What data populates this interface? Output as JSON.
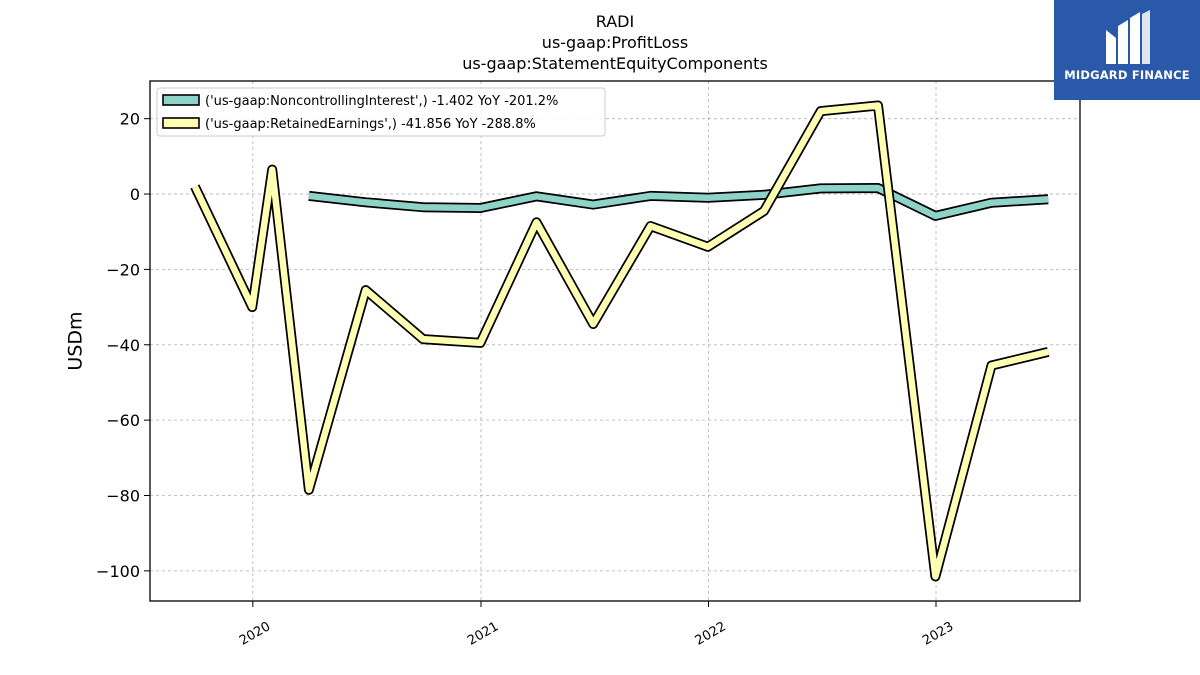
{
  "brand": {
    "name": "MIDGARD FINANCE",
    "color": "#2b59a9"
  },
  "chart_data": {
    "type": "line",
    "title_lines": [
      "RADI",
      "us-gaap:ProfitLoss",
      "us-gaap:StatementEquityComponents"
    ],
    "xlabel": "",
    "ylabel": "USDm",
    "xlim": [
      "2019-07-20",
      "2023-08-20"
    ],
    "ylim": [
      -108,
      30
    ],
    "yticks": [
      20,
      0,
      -20,
      -40,
      -60,
      -80,
      -100
    ],
    "xticks": [
      {
        "date": "2020-01-01",
        "label": "2020"
      },
      {
        "date": "2021-01-01",
        "label": "2021"
      },
      {
        "date": "2022-01-01",
        "label": "2022"
      },
      {
        "date": "2023-01-01",
        "label": "2023"
      }
    ],
    "grid": true,
    "legend": "top-left",
    "series": [
      {
        "name": "('us-gaap:NoncontrollingInterest',) -1.402 YoY -201.2%",
        "color": "#8dd3c7",
        "points": [
          [
            "2020-03-31",
            -0.5
          ],
          [
            "2020-06-30",
            -2.2
          ],
          [
            "2020-09-30",
            -3.5
          ],
          [
            "2020-12-31",
            -3.7
          ],
          [
            "2021-03-31",
            -0.6
          ],
          [
            "2021-06-30",
            -2.8
          ],
          [
            "2021-09-30",
            -0.5
          ],
          [
            "2021-12-31",
            -1.0
          ],
          [
            "2022-03-31",
            -0.2
          ],
          [
            "2022-06-30",
            1.5
          ],
          [
            "2022-09-30",
            1.6
          ],
          [
            "2022-12-31",
            -5.8
          ],
          [
            "2023-03-31",
            -2.3
          ],
          [
            "2023-06-30",
            -1.4
          ]
        ]
      },
      {
        "name": "('us-gaap:RetainedEarnings',) -41.856 YoY -288.8%",
        "color": "#ffffb3",
        "points": [
          [
            "2019-09-30",
            2.0
          ],
          [
            "2019-12-31",
            -30.0
          ],
          [
            "2020-02-01",
            6.5
          ],
          [
            "2020-03-31",
            -78.5
          ],
          [
            "2020-06-30",
            -25.5
          ],
          [
            "2020-09-30",
            -38.5
          ],
          [
            "2020-12-31",
            -39.5
          ],
          [
            "2021-03-31",
            -7.5
          ],
          [
            "2021-06-30",
            -34.5
          ],
          [
            "2021-09-30",
            -8.5
          ],
          [
            "2021-12-31",
            -14.0
          ],
          [
            "2022-03-31",
            -4.5
          ],
          [
            "2022-06-30",
            22.0
          ],
          [
            "2022-09-30",
            23.5
          ],
          [
            "2022-12-31",
            -101.5
          ],
          [
            "2023-03-31",
            -45.5
          ],
          [
            "2023-06-30",
            -41.9
          ]
        ]
      }
    ]
  }
}
